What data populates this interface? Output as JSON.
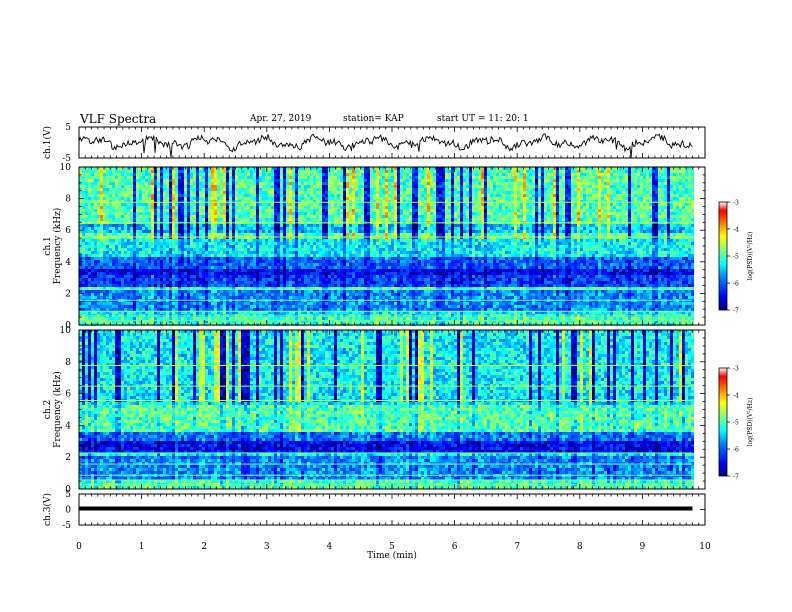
{
  "header": {
    "title": "VLF Spectra",
    "date": "Apr. 27, 2019",
    "station": "station= KAP",
    "start": "start UT =   11: 20: 1"
  },
  "chart_data": [
    {
      "type": "line",
      "panel": "ch1-waveform",
      "ylabel": "ch.1(V)",
      "ylim": [
        -5,
        5
      ],
      "yticks": [
        "5",
        "-5"
      ],
      "xlim": [
        0,
        10
      ],
      "series": [
        {
          "x": [
            0,
            9.8
          ],
          "y": [
            0,
            0
          ]
        }
      ]
    },
    {
      "type": "heatmap",
      "panel": "ch1-spectrogram",
      "ylabel": "ch.1",
      "ylabel2": "Frequency (kHz)",
      "ylim": [
        0,
        10
      ],
      "yticks": [
        "0",
        "2",
        "4",
        "6",
        "8",
        "10"
      ],
      "xlim": [
        0,
        10
      ],
      "colorbar": {
        "label": "log(PSD)(V²/Hz)",
        "range": [
          -7,
          -3
        ],
        "ticks": [
          "-3",
          "-4",
          "-5",
          "-6",
          "-7"
        ],
        "colors": [
          "#00007f",
          "#0000ff",
          "#0080ff",
          "#00ffff",
          "#80ff80",
          "#ffff00",
          "#ff8000",
          "#ff0000",
          "#ffffff"
        ]
      }
    },
    {
      "type": "heatmap",
      "panel": "ch2-spectrogram",
      "ylabel": "ch.2",
      "ylabel2": "Frequency (kHz)",
      "ylim": [
        0,
        10
      ],
      "yticks": [
        "0",
        "2",
        "4",
        "6",
        "8",
        "10"
      ],
      "xlim": [
        0,
        10
      ],
      "colorbar": {
        "label": "log(PSD)(V²/Hz)",
        "range": [
          -7,
          -3
        ],
        "ticks": [
          "-3",
          "-4",
          "-5",
          "-6",
          "-7"
        ],
        "colors": [
          "#00007f",
          "#0000ff",
          "#0080ff",
          "#00ffff",
          "#80ff80",
          "#ffff00",
          "#ff8000",
          "#ff0000",
          "#ffffff"
        ]
      }
    },
    {
      "type": "line",
      "panel": "ch3-waveform",
      "ylabel": "ch.3(V)",
      "ylim": [
        -5,
        5
      ],
      "yticks": [
        "5",
        "0",
        "-5"
      ],
      "xlim": [
        0,
        10
      ],
      "xlabel": "Time (min)",
      "xticks": [
        "0",
        "1",
        "2",
        "3",
        "4",
        "5",
        "6",
        "7",
        "8",
        "9",
        "10"
      ],
      "series": [
        {
          "x": [
            0,
            9.8
          ],
          "y": [
            0,
            0
          ]
        }
      ]
    }
  ]
}
